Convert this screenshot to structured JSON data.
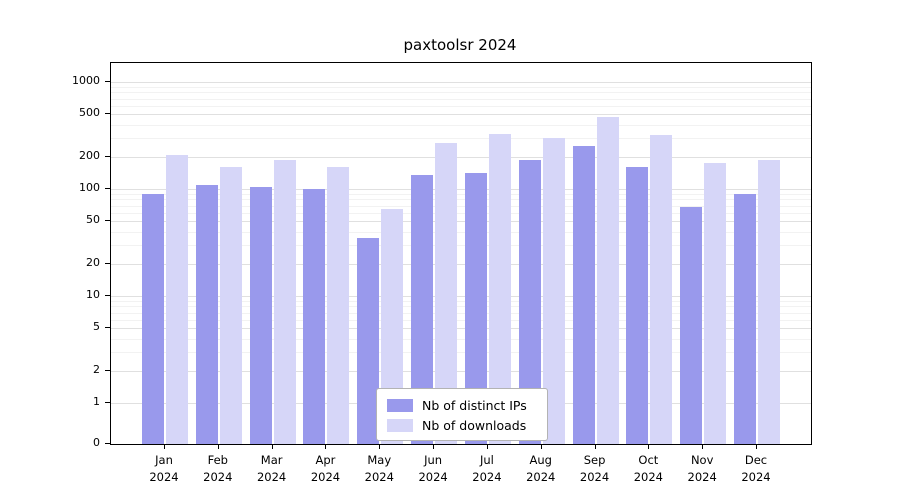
{
  "title": "paxtoolsr 2024",
  "chart_data": {
    "type": "bar",
    "title": "paxtoolsr 2024",
    "categories": [
      "Jan",
      "Feb",
      "Mar",
      "Apr",
      "May",
      "Jun",
      "Jul",
      "Aug",
      "Sep",
      "Oct",
      "Nov",
      "Dec"
    ],
    "year_label": "2024",
    "series": [
      {
        "name": "Nb of distinct IPs",
        "color": "#9999ec",
        "values": [
          90,
          110,
          105,
          100,
          35,
          135,
          140,
          185,
          250,
          160,
          68,
          90
        ]
      },
      {
        "name": "Nb of downloads",
        "color": "#d6d6f8",
        "values": [
          210,
          160,
          185,
          160,
          65,
          270,
          330,
          300,
          470,
          320,
          175,
          185
        ]
      }
    ],
    "yscale": "log",
    "yticks": [
      0,
      1,
      2,
      5,
      10,
      20,
      50,
      100,
      200,
      500,
      1000
    ],
    "yticks_minor": [
      3,
      4,
      6,
      7,
      8,
      9,
      30,
      40,
      60,
      70,
      80,
      90,
      300,
      400,
      600,
      700,
      800,
      900
    ],
    "xlabel": "",
    "ylabel": "",
    "grid": true,
    "legend_position": "bottom-center-inside",
    "colors": {
      "axis": "#000000",
      "grid_major": "#e0e0e0",
      "grid_minor": "#f2f2f2",
      "background": "#ffffff"
    }
  }
}
